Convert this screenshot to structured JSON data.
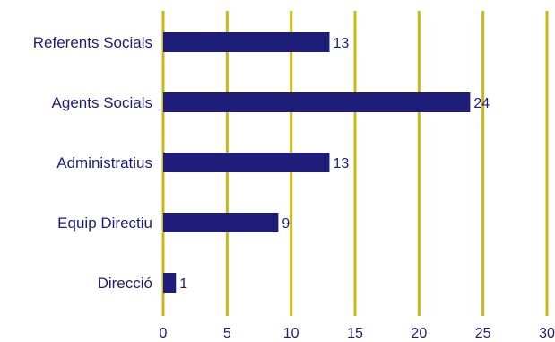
{
  "chart_data": {
    "type": "bar",
    "orientation": "horizontal",
    "categories": [
      "Referents Socials",
      "Agents Socials",
      "Administratius",
      "Equip Directiu",
      "Direcció"
    ],
    "values": [
      13,
      24,
      13,
      9,
      1
    ],
    "data_labels": [
      "13",
      "24",
      "13",
      "9",
      "1"
    ],
    "xlim": [
      0,
      30
    ],
    "x_ticks": [
      "0",
      "5",
      "10",
      "15",
      "20",
      "25",
      "30"
    ],
    "grid": "vertical",
    "legend": "none",
    "colors": {
      "bar": "#1f1d7a",
      "grid": "#c8b814",
      "text": "#1f1d7a"
    }
  }
}
